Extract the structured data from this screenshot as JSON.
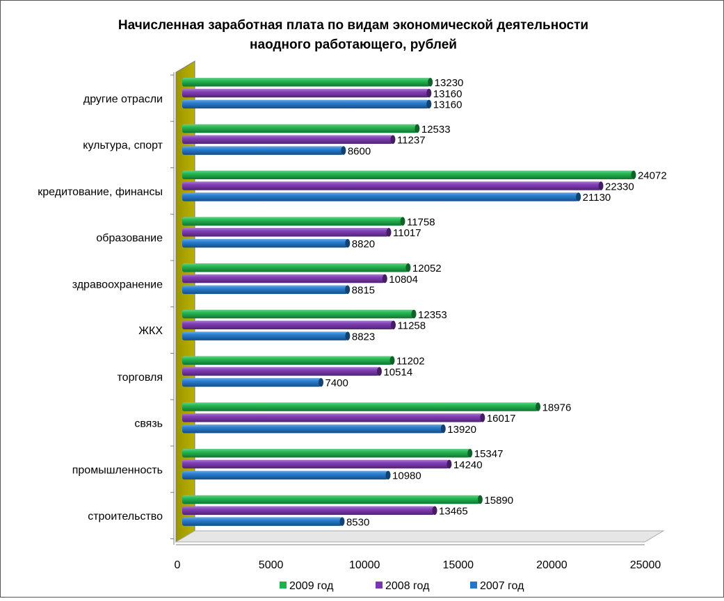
{
  "chart_data": {
    "type": "bar",
    "orientation": "horizontal",
    "title": "Начисленная заработная плата по видам экономической деятельности наодного работающего, рублей",
    "title_lines": [
      "Начисленная заработная плата по видам экономической деятельности",
      "наодного работающего, рублей"
    ],
    "categories": [
      "строительство",
      "промышленность",
      "связь",
      "торговля",
      "ЖКХ",
      "здравоохранение",
      "образование",
      "кредитование, финансы",
      "культура, спорт",
      "другие отрасли"
    ],
    "series": [
      {
        "name": "2009 год",
        "color": "#19b44a",
        "values": [
          15890,
          15347,
          18976,
          11202,
          12353,
          12052,
          11758,
          24072,
          12533,
          13230
        ]
      },
      {
        "name": "2008 год",
        "color": "#7b35b3",
        "values": [
          13465,
          14240,
          16017,
          10514,
          11258,
          10804,
          11017,
          22330,
          11237,
          13160
        ]
      },
      {
        "name": "2007 год",
        "color": "#1f78cf",
        "values": [
          8530,
          10980,
          13920,
          7400,
          8823,
          8815,
          8820,
          21130,
          8600,
          13160
        ]
      }
    ],
    "xlim": [
      0,
      25000
    ],
    "xticks": [
      0,
      5000,
      10000,
      15000,
      20000,
      25000
    ],
    "xlabel": "",
    "ylabel": "",
    "legend_position": "bottom",
    "grid": false,
    "wall_color": "#b8b000"
  }
}
